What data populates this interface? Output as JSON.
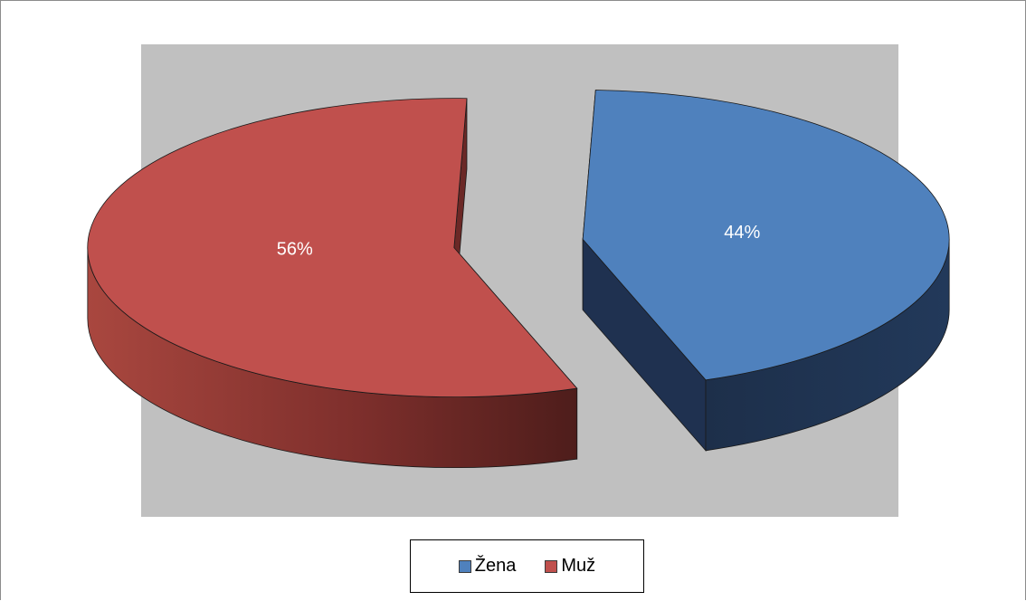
{
  "chart_data": {
    "type": "pie",
    "three_d": true,
    "exploded": true,
    "categories": [
      "Žena",
      "Muž"
    ],
    "values": [
      44,
      56
    ],
    "data_labels": [
      "44%",
      "56%"
    ],
    "colors": [
      "#4f81bd",
      "#c0504d"
    ],
    "side_colors": [
      "#1f3150",
      "#6b2826"
    ],
    "plot_background": "#c0c0c0",
    "legend": "bottom",
    "title": "",
    "xlabel": "",
    "ylabel": ""
  }
}
